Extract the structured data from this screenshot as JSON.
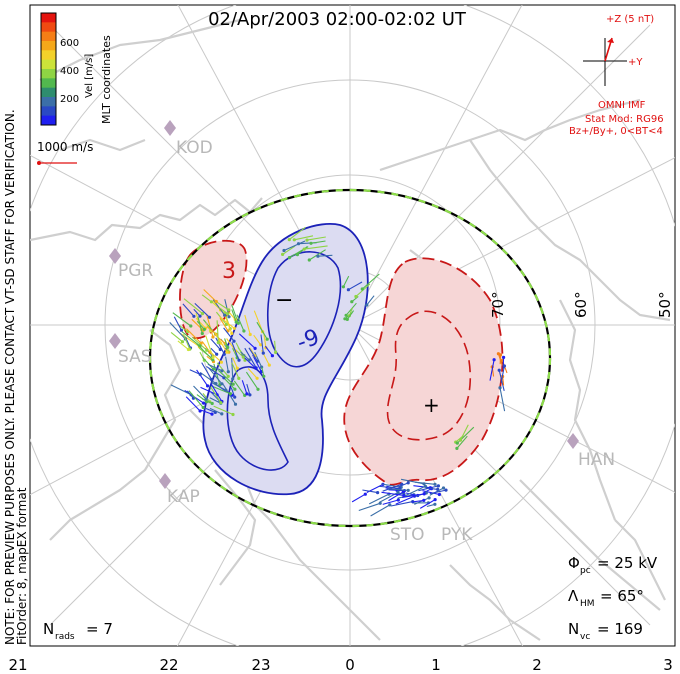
{
  "title": "02/Apr/2003 02:00-02:02 UT",
  "side_note": {
    "line1": "NOTE: FOR PREVIEW PURPOSES ONLY. PLEASE CONTACT VT-SD STAFF FOR VERIFICATION.",
    "line2": "FitOrder: 8, mapEX format"
  },
  "mlt_label": "MLT coordinates",
  "colorbar": {
    "label": "Vel [m/s]",
    "ticks": [
      "600",
      "400",
      "200"
    ],
    "colors": [
      "#e4140f",
      "#f04a12",
      "#f57e16",
      "#f5a81a",
      "#f3d12a",
      "#cce33a",
      "#8fd444",
      "#52b84e",
      "#2e8d6e",
      "#3b6fa8",
      "#2a49c4",
      "#1f1ff0"
    ]
  },
  "scale_vector": {
    "label": "1000 m/s"
  },
  "imf": {
    "z_label": "+Z (5 nT)",
    "y_label": "+Y",
    "omni": "OMNI IMF",
    "stat_mod": "Stat Mod: RG96",
    "conditions": "Bz+/By+, 0<BT<4",
    "color": "#e01010"
  },
  "stations": [
    "KOD",
    "PGR",
    "SAS",
    "KAP",
    "STO",
    "PYK",
    "HAN"
  ],
  "latitude_labels": [
    "70°",
    "60°",
    "50°"
  ],
  "contour_labels": {
    "neg_sign": "−",
    "neg_value": "-9",
    "pos_value": "3",
    "pos_sign": "+"
  },
  "stats": {
    "phi_sym": "Φ",
    "phi_sub": "pc",
    "phi_val": "= 25 kV",
    "lambda_sym": "Λ",
    "lambda_sub": "HM",
    "lambda_val": "= 65°",
    "nvc_sym": "N",
    "nvc_sub": "vc",
    "nvc_val": "= 169",
    "nrads_sym": "N",
    "nrads_sub": "rads",
    "nrads_val": "= 7"
  },
  "mlt_ticks": [
    "21",
    "22",
    "23",
    "0",
    "1",
    "2",
    "3"
  ],
  "colors": {
    "negative_fill": "#dcdcf2",
    "negative_line": "#1c22b8",
    "positive_fill": "#f6d6d6",
    "positive_line": "#c81818",
    "grid": "#c9c9c9",
    "land": "#cfcfcf",
    "hmb_dash_a": "#000000",
    "hmb_dash_b": "#8ede4a"
  }
}
